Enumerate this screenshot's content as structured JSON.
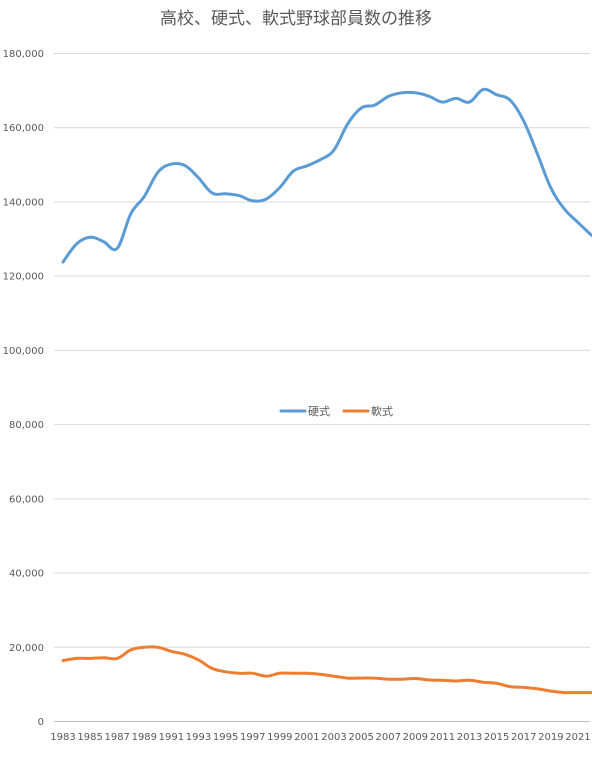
{
  "chart_data": {
    "type": "line",
    "title": "高校、硬式、軟式野球部員数の推移",
    "xlabel": "",
    "ylabel": "",
    "ylim": [
      0,
      180000
    ],
    "yticks": [
      0,
      20000,
      40000,
      60000,
      80000,
      100000,
      120000,
      140000,
      160000,
      180000
    ],
    "ytick_labels": [
      "0",
      "20,000",
      "40,000",
      "60,000",
      "80,000",
      "100,000",
      "120,000",
      "140,000",
      "160,000",
      "180,000"
    ],
    "x": [
      1983,
      1984,
      1985,
      1986,
      1987,
      1988,
      1989,
      1990,
      1991,
      1992,
      1993,
      1994,
      1995,
      1996,
      1997,
      1998,
      1999,
      2000,
      2001,
      2002,
      2003,
      2004,
      2005,
      2006,
      2007,
      2008,
      2009,
      2010,
      2011,
      2012,
      2013,
      2014,
      2015,
      2016,
      2017,
      2018,
      2019,
      2020,
      2021,
      2022
    ],
    "xtick_labels": [
      "1983",
      "1985",
      "1987",
      "1989",
      "1991",
      "1993",
      "1995",
      "1997",
      "1999",
      "2001",
      "2003",
      "2005",
      "2007",
      "2009",
      "2011",
      "2013",
      "2015",
      "2017",
      "2019",
      "2021"
    ],
    "grid": "horizontal",
    "legend_position": "center",
    "series": [
      {
        "name": "硬式",
        "color": "#5b9bd5",
        "values": [
          123800,
          128700,
          130500,
          129300,
          127500,
          136800,
          141500,
          148000,
          150200,
          149800,
          146500,
          142400,
          142200,
          141700,
          140300,
          140800,
          143900,
          148300,
          149700,
          151400,
          154000,
          161000,
          165300,
          166100,
          168400,
          169400,
          169400,
          168500,
          166900,
          167900,
          166900,
          170300,
          168900,
          167400,
          161800,
          153000,
          143800,
          138100,
          134500,
          131000
        ]
      },
      {
        "name": "軟式",
        "color": "#ed7d31",
        "values": [
          16400,
          17000,
          17000,
          17200,
          17000,
          19300,
          20000,
          20000,
          18900,
          18100,
          16600,
          14300,
          13400,
          13000,
          13000,
          12200,
          13000,
          13000,
          13000,
          12700,
          12200,
          11700,
          11700,
          11700,
          11400,
          11400,
          11600,
          11200,
          11100,
          10900,
          11100,
          10600,
          10300,
          9400,
          9200,
          8800,
          8200,
          7800,
          7800,
          7800
        ]
      }
    ]
  }
}
